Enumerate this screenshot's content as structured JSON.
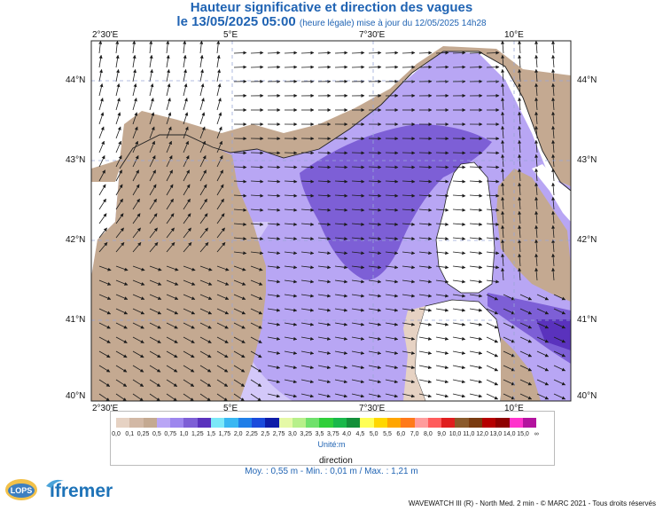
{
  "title": "Hauteur significative et direction des vagues",
  "subtitle_main": "le 13/05/2025 05:00",
  "subtitle_note": "(heure légale) mise à jour du 12/05/2025 14h28",
  "axes": {
    "lon_top": [
      "2°30'E",
      "5°E",
      "7°30'E",
      "10°E"
    ],
    "lon_bottom": [
      "2°30'E",
      "5°E",
      "7°30'E",
      "10°E"
    ],
    "lat_left": [
      "44°N",
      "43°N",
      "42°N",
      "41°N",
      "40°N"
    ],
    "lat_right": [
      "44°N",
      "43°N",
      "42°N",
      "41°N",
      "40°N"
    ]
  },
  "legend": {
    "labels": [
      "0,0",
      "0,1",
      "0,25",
      "0,5",
      "0,75",
      "1,0",
      "1,25",
      "1,5",
      "1,75",
      "2,0",
      "2,25",
      "2,5",
      "2,75",
      "3,0",
      "3,25",
      "3,5",
      "3,75",
      "4,0",
      "4,5",
      "5,0",
      "5,5",
      "6,0",
      "7,0",
      "8,0",
      "9,0",
      "10,0",
      "11,0",
      "12,0",
      "13,0",
      "14,0",
      "15,0",
      "∞"
    ],
    "colors": [
      "#e6d2c3",
      "#d2b8a5",
      "#c4a991",
      "#b9a6f5",
      "#9d86ee",
      "#7d5fd6",
      "#5a32bd",
      "#7be8f8",
      "#39b7f2",
      "#1f7ee8",
      "#1a4bdc",
      "#0d1ca8",
      "#e5f9a6",
      "#b7f08a",
      "#6fe16b",
      "#2fcf3a",
      "#19b84a",
      "#138f3a",
      "#ffff55",
      "#ffd700",
      "#ffa500",
      "#ff7a1a",
      "#ff9c9c",
      "#ff5c5c",
      "#e01e1e",
      "#8b5a2b",
      "#7a3b10",
      "#b50000",
      "#8e0000",
      "#ff33cc",
      "#b3139e"
    ],
    "unit": "Unité:m",
    "direction_label": "direction"
  },
  "stats": "Moy. : 0,55 m   -   Min. : 0,01 m / Max. : 1,21 m",
  "footer": "WAVEWATCH III (R) - North Med. 2 min - © MARC 2021 - Tous droits réservés",
  "logos": {
    "left": "LOPS",
    "right": "Ifremer"
  }
}
